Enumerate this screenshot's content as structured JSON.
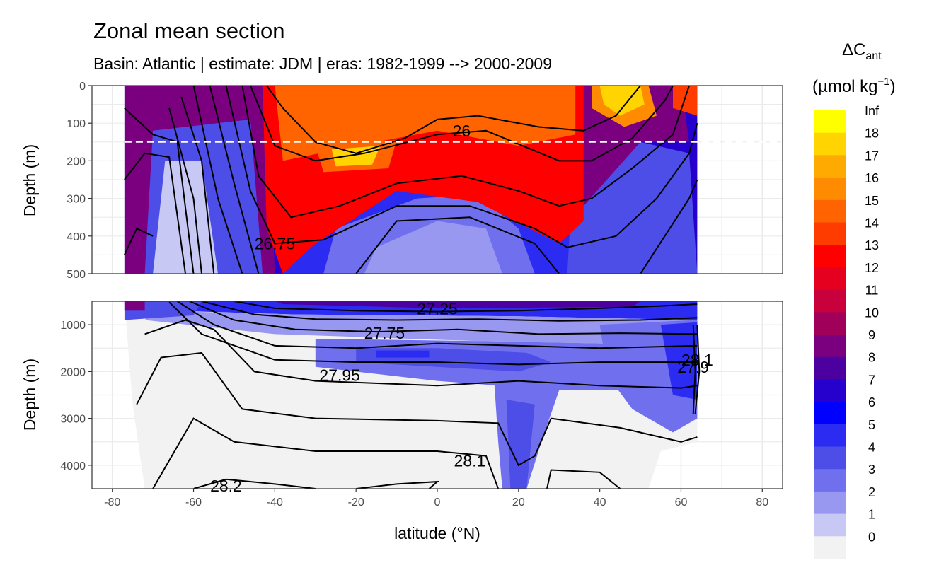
{
  "chart_data": {
    "type": "heatmap",
    "title": "Zonal mean section",
    "subtitle": "Basin: Atlantic | estimate: JDM  | eras: 1982-1999 --> 2000-2009",
    "xlabel": "latitude (°N)",
    "ylabel": "Depth (m)",
    "xlim": [
      -85,
      85
    ],
    "x_ticks": [
      "-80",
      "-60",
      "-40",
      "-20",
      "0",
      "20",
      "40",
      "60",
      "80"
    ],
    "x_tick_values": [
      -80,
      -60,
      -40,
      -20,
      0,
      20,
      40,
      60,
      80
    ],
    "grid": true,
    "panels": [
      {
        "name": "upper",
        "ylim": [
          500,
          0
        ],
        "y_ticks": [
          "0",
          "100",
          "200",
          "300",
          "400",
          "500"
        ],
        "y_tick_values": [
          0,
          100,
          200,
          300,
          400,
          500
        ],
        "reference_line_depth": 150,
        "contour_labels": [
          {
            "text": "26",
            "lat": 6,
            "depth": 120
          },
          {
            "text": "26.75",
            "lat": -40,
            "depth": 420
          }
        ]
      },
      {
        "name": "lower",
        "ylim": [
          4500,
          500
        ],
        "y_ticks": [
          "1000",
          "2000",
          "3000",
          "4000"
        ],
        "y_tick_values": [
          1000,
          2000,
          3000,
          4000
        ],
        "contour_labels": [
          {
            "text": "27.25",
            "lat": 0,
            "depth": 660
          },
          {
            "text": "27.75",
            "lat": -13,
            "depth": 1180
          },
          {
            "text": "27.95",
            "lat": -24,
            "depth": 2080
          },
          {
            "text": "28.1",
            "lat": 8,
            "depth": 3900
          },
          {
            "text": "28.2",
            "lat": -52,
            "depth": 4440
          },
          {
            "text": "27.9",
            "lat": 63,
            "depth": 1900
          },
          {
            "text": "28.1",
            "lat": 64,
            "depth": 1750
          }
        ]
      }
    ],
    "legend": {
      "title": "ΔC",
      "title_sub": "ant",
      "units_pre": "(µmol kg",
      "units_sup": "−1",
      "units_post": ")",
      "placement": "right",
      "levels": [
        "Inf",
        "18",
        "17",
        "16",
        "15",
        "14",
        "13",
        "12",
        "11",
        "10",
        "9",
        "8",
        "7",
        "6",
        "5",
        "4",
        "3",
        "2",
        "1",
        "0"
      ],
      "colors": [
        "#ffff00",
        "#ffd400",
        "#ffaa00",
        "#ff8c00",
        "#ff6400",
        "#ff3c00",
        "#ff0000",
        "#e60020",
        "#c8003c",
        "#a0005a",
        "#7a0080",
        "#4d00a0",
        "#2600cc",
        "#0000ff",
        "#2b2bf2",
        "#4d4de8",
        "#7070ee",
        "#9898f0",
        "#c8c8f4",
        "#f2f2f2"
      ]
    }
  }
}
